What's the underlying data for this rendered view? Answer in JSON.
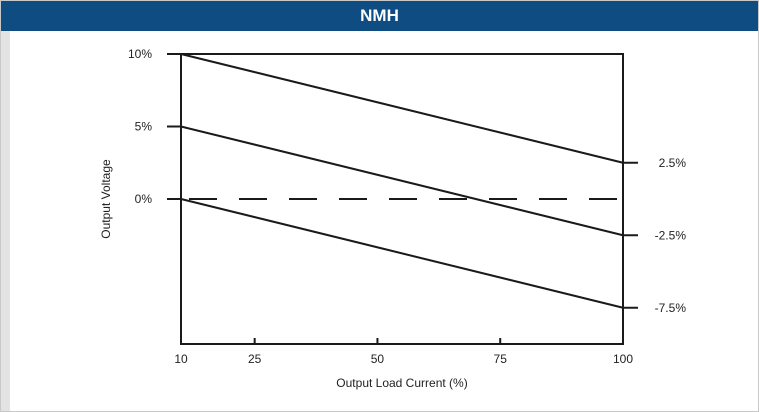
{
  "chart_data": {
    "type": "line",
    "title": "NMH",
    "xlabel": "Output Load Current (%)",
    "ylabel": "Output Voltage",
    "x_ticks": [
      10,
      25,
      50,
      75,
      100
    ],
    "y_ticks": [
      "10%",
      "5%",
      "0%"
    ],
    "xlim": [
      10,
      100
    ],
    "ylim": [
      -10,
      10
    ],
    "series": [
      {
        "x": [
          10,
          100
        ],
        "y": [
          10,
          2.5
        ],
        "end_label": "2.5%",
        "style": "solid"
      },
      {
        "x": [
          10,
          100
        ],
        "y": [
          5,
          -2.5
        ],
        "end_label": "-2.5%",
        "style": "solid"
      },
      {
        "x": [
          10,
          100
        ],
        "y": [
          0,
          -7.5
        ],
        "end_label": "-7.5%",
        "style": "solid"
      },
      {
        "x": [
          10,
          100
        ],
        "y": [
          0,
          0
        ],
        "style": "dashed"
      }
    ],
    "grid": false,
    "colors": {
      "header": "#0e4c82",
      "line": "#1a1a1a"
    }
  }
}
